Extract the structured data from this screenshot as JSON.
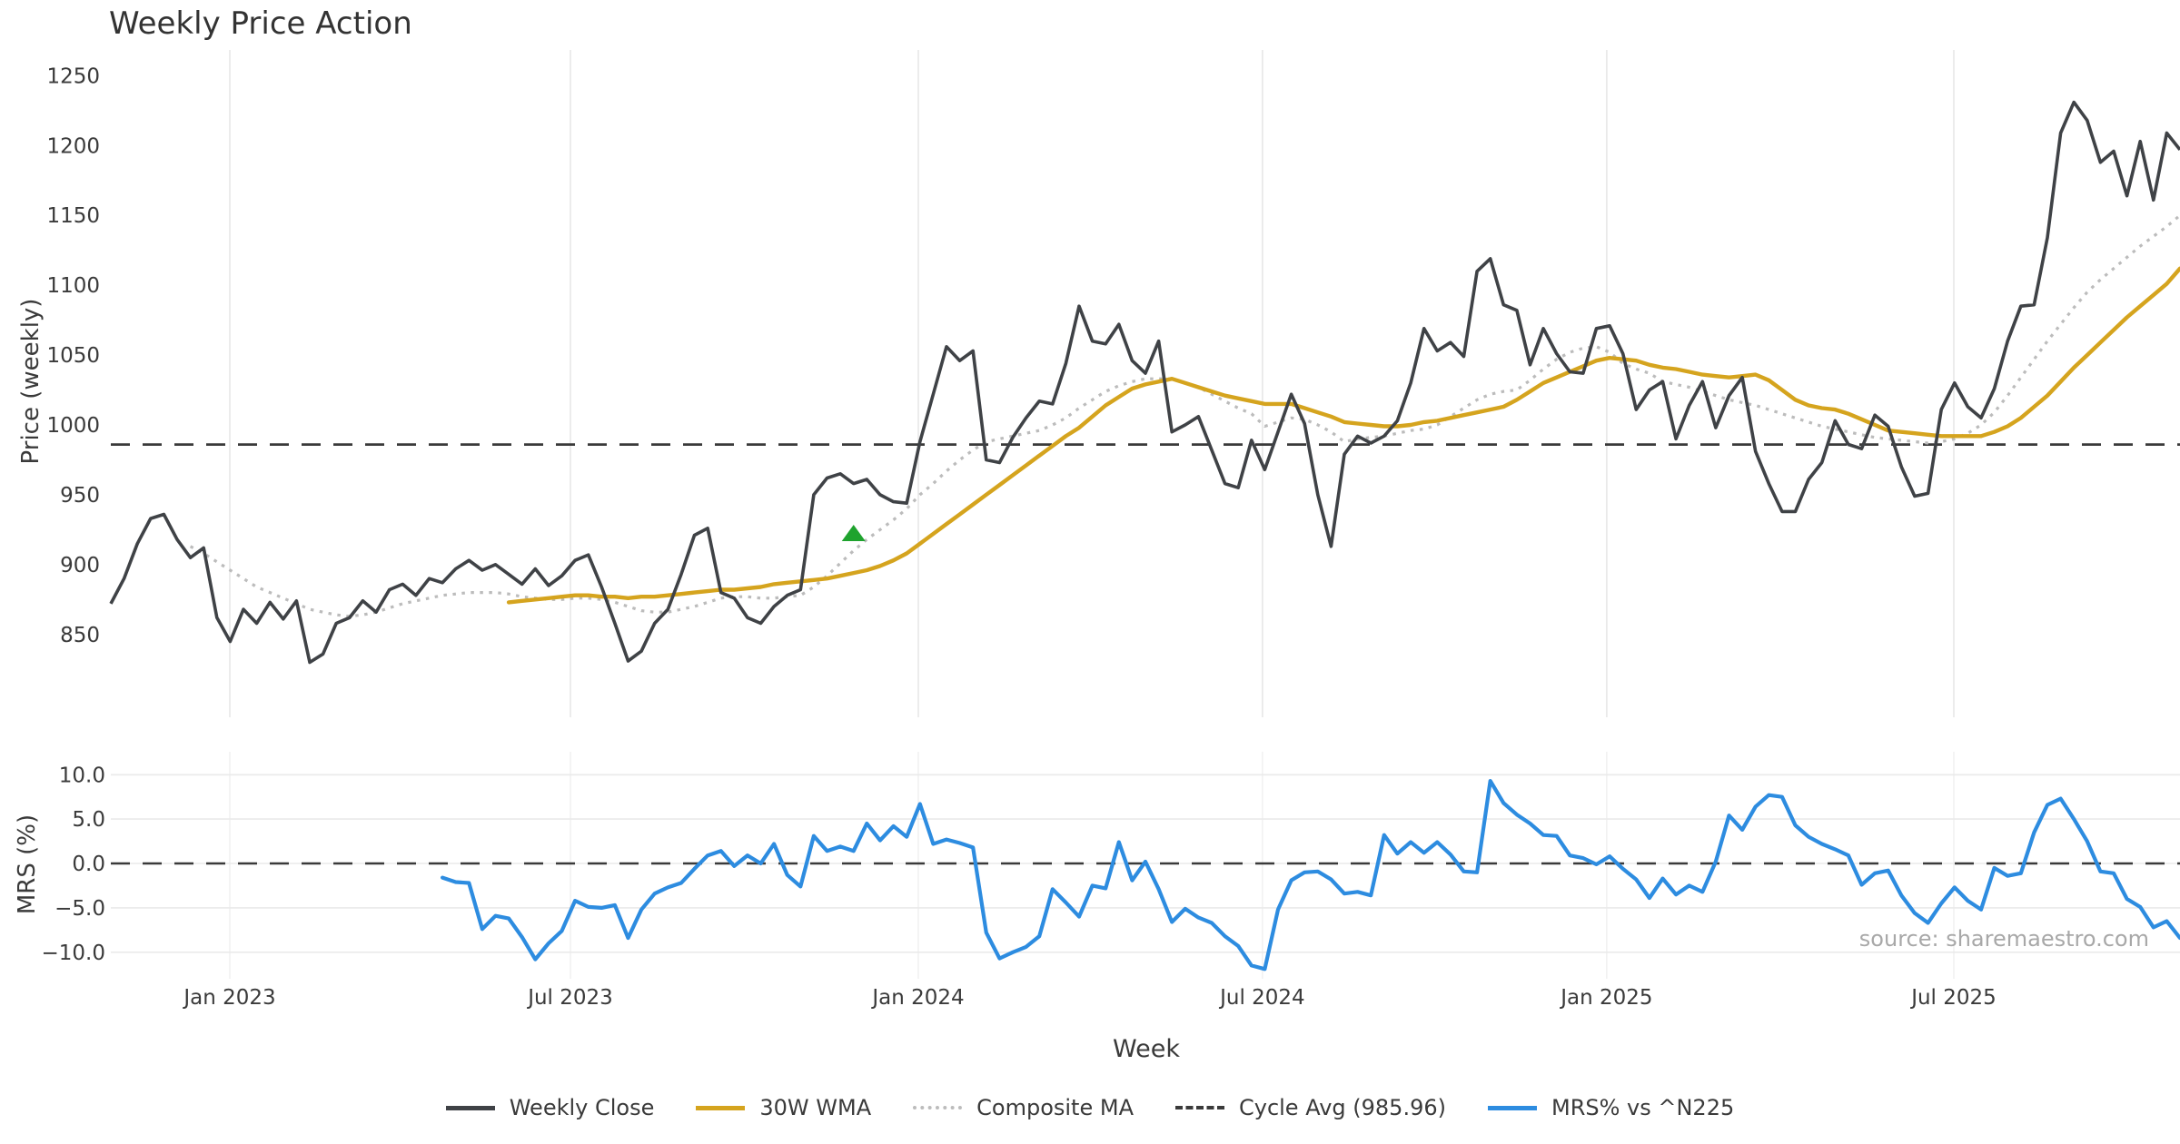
{
  "title": "Weekly Price Action",
  "source_text": "source: sharemaestro.com",
  "axes": {
    "price_label": "Price (weekly)",
    "mrs_label": "MRS (%)",
    "x_label": "Week",
    "price_ticks": [
      1250,
      1200,
      1150,
      1100,
      1050,
      1000,
      950,
      900,
      850
    ],
    "mrs_ticks": [
      {
        "value": 10,
        "label": "10.0"
      },
      {
        "value": 5,
        "label": "5.0"
      },
      {
        "value": 0,
        "label": "0.0"
      },
      {
        "value": -5,
        "label": "−5.0"
      },
      {
        "value": -10,
        "label": "−10.0"
      }
    ],
    "x_ticks": [
      {
        "label": "Jan 2023",
        "week": 8.97
      },
      {
        "label": "Jul 2023",
        "week": 34.65
      },
      {
        "label": "Jan 2024",
        "week": 60.88
      },
      {
        "label": "Jul 2024",
        "week": 86.83
      },
      {
        "label": "Jan 2025",
        "week": 112.78
      },
      {
        "label": "Jul 2025",
        "week": 138.95
      }
    ]
  },
  "colors": {
    "weekly_close": "#3f4246",
    "wma_30": "#d5a41e",
    "composite_ma": "#bcbcbc",
    "cycle_avg": "#3a3a3a",
    "mrs": "#2d8ce0",
    "marker": "#1fa32e",
    "grid": "#e8e8e8",
    "grid_faint": "#f0f0f0",
    "text": "#3a3a3a"
  },
  "legend": [
    {
      "label": "Weekly Close",
      "style": "solid",
      "color": "#3f4246"
    },
    {
      "label": "30W WMA",
      "style": "solid",
      "color": "#d5a41e"
    },
    {
      "label": "Composite MA",
      "style": "dotted",
      "color": "#bcbcbc"
    },
    {
      "label": "Cycle Avg (985.96)",
      "style": "dashed",
      "color": "#3a3a3a"
    },
    {
      "label": "MRS% vs ^N225",
      "style": "solid",
      "color": "#2d8ce0"
    }
  ],
  "chart_data": {
    "type": "line",
    "x_unit": "week_index",
    "n_weeks": 157,
    "title": "Weekly Price Action",
    "xlabel": "Week",
    "ylabel_top": "Price (weekly)",
    "ylabel_bottom": "MRS (%)",
    "price_ylim": [
      791,
      1268
    ],
    "mrs_ylim": [
      -13,
      12.6
    ],
    "grid": true,
    "legend_position": "bottom-center",
    "cycle_avg": 985.96,
    "signal_marker": {
      "week": 56,
      "price": 922,
      "shape": "triangle-up"
    },
    "series": [
      {
        "name": "Weekly Close",
        "values": [
          872,
          890,
          915,
          933,
          936,
          918,
          905,
          912,
          862,
          845,
          868,
          858,
          873,
          861,
          874,
          830,
          836,
          858,
          862,
          874,
          866,
          882,
          886,
          878,
          890,
          887,
          897,
          903,
          896,
          900,
          893,
          886,
          897,
          885,
          892,
          903,
          907,
          884,
          858,
          831,
          838,
          858,
          868,
          893,
          921,
          926,
          880,
          876,
          862,
          858,
          870,
          878,
          882,
          950,
          962,
          965,
          958,
          961,
          950,
          945,
          944,
          988,
          1022,
          1056,
          1046,
          1053,
          975,
          973,
          991,
          1005,
          1017,
          1015,
          1044,
          1085,
          1060,
          1058,
          1072,
          1046,
          1037,
          1060,
          995,
          1000,
          1006,
          982,
          958,
          955,
          989,
          968,
          995,
          1022,
          1001,
          950,
          913,
          979,
          992,
          987,
          992,
          1003,
          1030,
          1069,
          1053,
          1059,
          1049,
          1110,
          1119,
          1086,
          1082,
          1043,
          1069,
          1051,
          1038,
          1037,
          1069,
          1071,
          1051,
          1011,
          1025,
          1031,
          990,
          1014,
          1031,
          998,
          1021,
          1034,
          981,
          958,
          938,
          938,
          961,
          973,
          1003,
          986,
          983,
          1007,
          999,
          970,
          949,
          951,
          1011,
          1030,
          1013,
          1005,
          1026,
          1060,
          1085,
          1086,
          1134,
          1209,
          1231,
          1218,
          1188,
          1196,
          1164,
          1203,
          1161,
          1209,
          1197
        ]
      },
      {
        "name": "30W WMA",
        "values": [
          null,
          null,
          null,
          null,
          null,
          null,
          null,
          null,
          null,
          null,
          null,
          null,
          null,
          null,
          null,
          null,
          null,
          null,
          null,
          null,
          null,
          null,
          null,
          null,
          null,
          null,
          null,
          null,
          null,
          null,
          873,
          874,
          875,
          876,
          877,
          878,
          878,
          877,
          877,
          876,
          877,
          877,
          878,
          879,
          880,
          881,
          882,
          882,
          883,
          884,
          886,
          887,
          888,
          889,
          890,
          892,
          894,
          896,
          899,
          903,
          908,
          915,
          922,
          929,
          936,
          943,
          950,
          957,
          964,
          971,
          978,
          985,
          992,
          998,
          1006,
          1014,
          1020,
          1026,
          1029,
          1031,
          1033,
          1030,
          1027,
          1024,
          1021,
          1019,
          1017,
          1015,
          1015,
          1015,
          1012,
          1009,
          1006,
          1002,
          1001,
          1000,
          999,
          999,
          1000,
          1002,
          1003,
          1005,
          1007,
          1009,
          1011,
          1013,
          1018,
          1024,
          1030,
          1034,
          1038,
          1042,
          1046,
          1048,
          1047,
          1046,
          1043,
          1041,
          1040,
          1038,
          1036,
          1035,
          1034,
          1035,
          1036,
          1032,
          1025,
          1018,
          1014,
          1012,
          1011,
          1008,
          1004,
          1000,
          996,
          995,
          994,
          993,
          992,
          992,
          992,
          992,
          995,
          999,
          1005,
          1013,
          1021,
          1031,
          1041,
          1050,
          1059,
          1068,
          1077,
          1085,
          1093,
          1101,
          1112
        ]
      },
      {
        "name": "Composite MA",
        "values": [
          null,
          null,
          null,
          null,
          null,
          null,
          913,
          908,
          902,
          896,
          890,
          884,
          880,
          876,
          872,
          868,
          866,
          864,
          863,
          864,
          866,
          869,
          872,
          874,
          876,
          878,
          879,
          880,
          880,
          880,
          879,
          877,
          876,
          875,
          875,
          876,
          876,
          875,
          873,
          870,
          867,
          866,
          866,
          868,
          870,
          873,
          876,
          877,
          877,
          876,
          876,
          877,
          878,
          884,
          892,
          901,
          910,
          918,
          925,
          932,
          940,
          950,
          958,
          967,
          975,
          982,
          988,
          990,
          992,
          994,
          996,
          1000,
          1005,
          1012,
          1018,
          1024,
          1028,
          1031,
          1033,
          1033,
          1033,
          1030,
          1027,
          1022,
          1017,
          1012,
          1008,
          999,
          1002,
          1005,
          1004,
          1000,
          995,
          988,
          990,
          991,
          992,
          994,
          996,
          997,
          1000,
          1006,
          1012,
          1018,
          1022,
          1024,
          1025,
          1032,
          1040,
          1047,
          1052,
          1055,
          1056,
          1052,
          1044,
          1040,
          1037,
          1031,
          1029,
          1027,
          1024,
          1021,
          1018,
          1016,
          1014,
          1011,
          1008,
          1005,
          1002,
          999,
          997,
          995,
          993,
          991,
          990,
          989,
          988,
          987,
          988,
          990,
          994,
          1000,
          1009,
          1021,
          1034,
          1047,
          1060,
          1072,
          1084,
          1095,
          1104,
          1112,
          1120,
          1128,
          1135,
          1142,
          1150
        ]
      },
      {
        "name": "MRS% vs ^N225",
        "values": [
          null,
          null,
          null,
          null,
          null,
          null,
          null,
          null,
          null,
          null,
          null,
          null,
          null,
          null,
          null,
          null,
          null,
          null,
          null,
          null,
          null,
          null,
          null,
          null,
          null,
          -1.6,
          -2.1,
          -2.2,
          -7.4,
          -5.9,
          -6.2,
          -8.3,
          -10.8,
          -9.0,
          -7.6,
          -4.2,
          -4.9,
          -5.0,
          -4.7,
          -8.4,
          -5.2,
          -3.4,
          -2.7,
          -2.2,
          -0.6,
          0.9,
          1.4,
          -0.3,
          0.9,
          0.0,
          2.2,
          -1.3,
          -2.6,
          3.1,
          1.4,
          1.9,
          1.4,
          4.5,
          2.6,
          4.2,
          3.0,
          6.7,
          2.2,
          2.7,
          2.3,
          1.8,
          -7.8,
          -10.7,
          -10.0,
          -9.4,
          -8.2,
          -2.9,
          -4.4,
          -6.0,
          -2.5,
          -2.8,
          2.4,
          -1.9,
          0.2,
          -2.9,
          -6.6,
          -5.1,
          -6.1,
          -6.7,
          -8.2,
          -9.3,
          -11.5,
          -11.9,
          -5.2,
          -1.9,
          -1.0,
          -0.9,
          -1.8,
          -3.4,
          -3.2,
          -3.6,
          3.2,
          1.1,
          2.4,
          1.2,
          2.4,
          1.0,
          -0.9,
          -1.0,
          9.3,
          6.8,
          5.5,
          4.5,
          3.2,
          3.1,
          0.9,
          0.6,
          -0.1,
          0.8,
          -0.6,
          -1.8,
          -3.9,
          -1.7,
          -3.5,
          -2.5,
          -3.2,
          0.2,
          5.4,
          3.8,
          6.4,
          7.7,
          7.5,
          4.3,
          3.0,
          2.2,
          1.6,
          0.9,
          -2.4,
          -1.1,
          -0.8,
          -3.6,
          -5.6,
          -6.7,
          -4.5,
          -2.7,
          -4.2,
          -5.2,
          -0.5,
          -1.4,
          -1.1,
          3.5,
          6.6,
          7.3,
          5.0,
          2.5,
          -0.9,
          -1.1,
          -4.0,
          -4.9,
          -7.2,
          -6.5,
          -8.4
        ]
      }
    ]
  }
}
